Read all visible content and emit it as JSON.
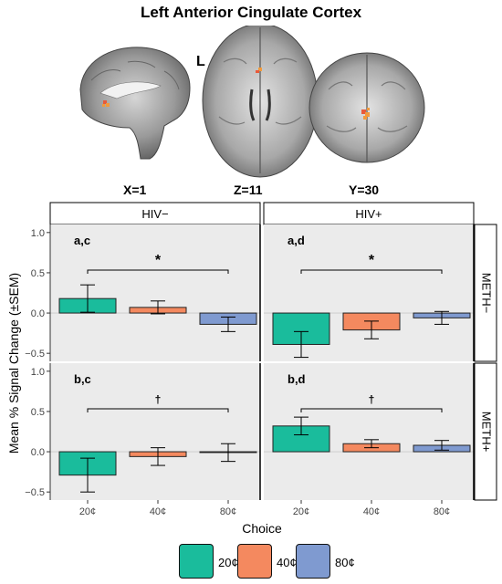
{
  "figure": {
    "title": "Left Anterior Cingulate Cortex",
    "hemisphere_label": "L",
    "views": [
      {
        "name": "X=1"
      },
      {
        "name": "Z=11"
      },
      {
        "name": "Y=30"
      }
    ]
  },
  "colors": {
    "20¢": "#1ABC9C",
    "40¢": "#F4895F",
    "80¢": "#7F9AD0",
    "panel_bg": "#EBEBEB",
    "activation_orange": "#F29A3C",
    "activation_red": "#E85A3A"
  },
  "chart_data": {
    "type": "bar",
    "ylabel": "Mean % Signal Change (±SEM)",
    "xlabel": "Choice",
    "categories": [
      "20¢",
      "40¢",
      "80¢"
    ],
    "ylim": [
      -0.6,
      1.1
    ],
    "yticks": [
      -0.5,
      0.0,
      0.5,
      1.0
    ],
    "ytick_labels": [
      "−0.5",
      "0.0",
      "0.5",
      "1.0"
    ],
    "grid": false,
    "column_facets": [
      "HIV−",
      "HIV+"
    ],
    "row_facets": [
      "METH−",
      "METH+"
    ],
    "legend": {
      "position": "bottom",
      "entries": [
        "20¢",
        "40¢",
        "80¢"
      ]
    },
    "panels": [
      {
        "col": "HIV−",
        "row": "METH−",
        "letters": "a,c",
        "significance": "*",
        "values": [
          0.18,
          0.07,
          -0.14
        ],
        "sem": [
          0.17,
          0.08,
          0.09
        ]
      },
      {
        "col": "HIV+",
        "row": "METH−",
        "letters": "a,d",
        "significance": "*",
        "values": [
          -0.39,
          -0.21,
          -0.06
        ],
        "sem": [
          0.16,
          0.11,
          0.08
        ]
      },
      {
        "col": "HIV−",
        "row": "METH+",
        "letters": "b,c",
        "significance": "†",
        "values": [
          -0.29,
          -0.06,
          -0.01
        ],
        "sem": [
          0.21,
          0.11,
          0.11
        ]
      },
      {
        "col": "HIV+",
        "row": "METH+",
        "letters": "b,d",
        "significance": "†",
        "values": [
          0.32,
          0.1,
          0.08
        ],
        "sem": [
          0.11,
          0.05,
          0.06
        ]
      }
    ]
  }
}
